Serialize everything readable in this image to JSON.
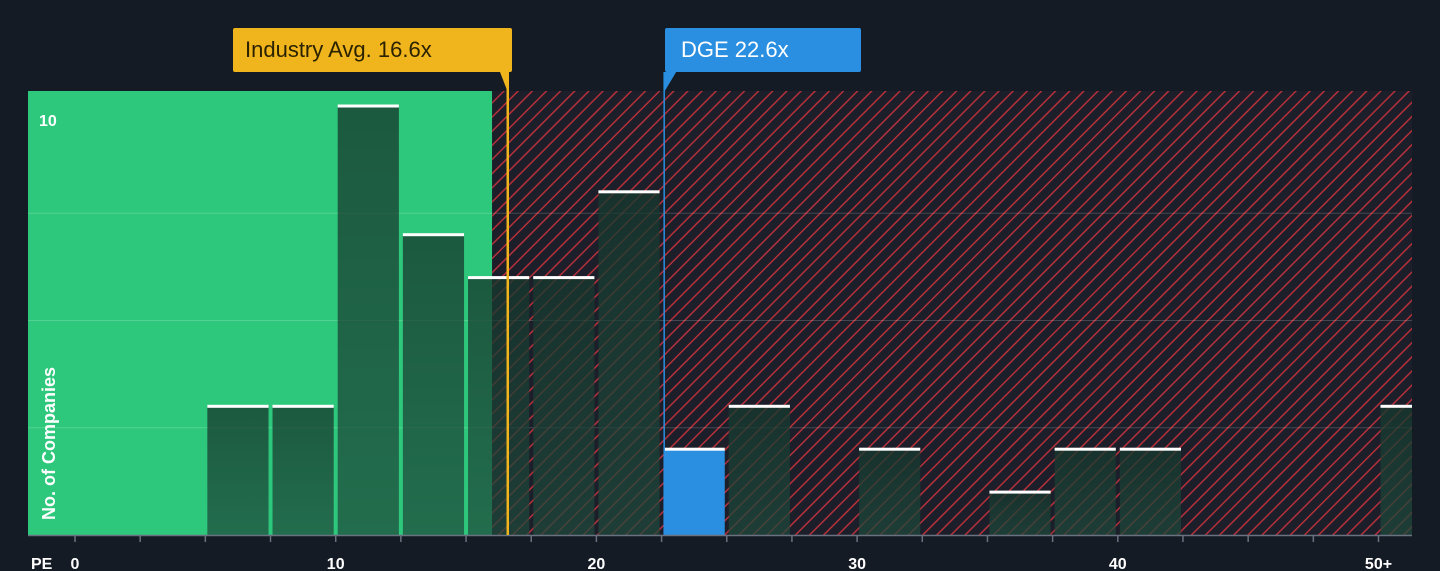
{
  "chart_data": {
    "type": "bar",
    "title": "",
    "xlabel": "PE",
    "ylabel": "No. of Companies",
    "bin_width": 2.5,
    "bins_start": [
      5,
      7.5,
      10,
      12.5,
      15,
      17.5,
      20,
      22.5,
      25,
      27.5,
      30,
      32.5,
      35,
      37.5,
      40,
      42.5,
      45,
      47.5,
      50
    ],
    "values": [
      3,
      3,
      10,
      7,
      6,
      6,
      8,
      2,
      3,
      0,
      2,
      0,
      1,
      2,
      2,
      0,
      0,
      0,
      3
    ],
    "highlight_bin_start": 22.5,
    "x_ticks": [
      0,
      10,
      20,
      30,
      40,
      "50+"
    ],
    "x_minor_tick_step": 2.5,
    "xlim": [
      0,
      51.3
    ],
    "ylim": [
      0,
      10.2
    ],
    "y_tick_labels": [
      {
        "value": 10,
        "label": "10"
      }
    ],
    "y_gridlines": [
      2.5,
      5,
      7.5
    ],
    "fair_range_max": 16,
    "industry_avg": {
      "value": 16.6,
      "label": "Industry Avg. 16.6x"
    },
    "company": {
      "value": 22.6,
      "label": "DGE 22.6x"
    },
    "colors": {
      "background": "#151b24",
      "fair_zone": "#2ec87c",
      "bar_fill": "#1e4a3c",
      "overvalued_zone": "#b5303a",
      "hatch_bg": "#1c1f2a",
      "company_bar": "#2a8fe0",
      "industry_callout": "#f0b41c",
      "company_callout": "#2a8fe0",
      "industry_callout_text": "#2b2200",
      "bar_top": "#ffffff"
    }
  }
}
